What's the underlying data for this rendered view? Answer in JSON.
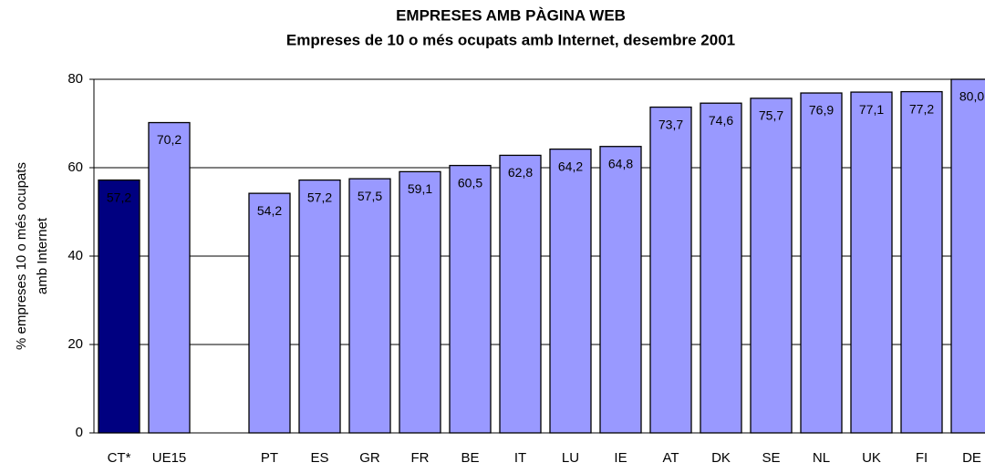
{
  "chart_data": {
    "type": "bar",
    "title": "EMPRESES AMB PÀGINA WEB",
    "subtitle": "Empreses de 10 o més ocupats amb Internet, desembre 2001",
    "y_label": [
      "% empreses 10 o més ocupats",
      "amb Internet"
    ],
    "categories": [
      "CT*",
      "UE15",
      null,
      "PT",
      "ES",
      "GR",
      "FR",
      "BE",
      "IT",
      "LU",
      "IE",
      "AT",
      "DK",
      "SE",
      "NL",
      "UK",
      "FI",
      "DE"
    ],
    "values": [
      57.2,
      70.2,
      null,
      54.2,
      57.2,
      57.5,
      59.1,
      60.5,
      62.8,
      64.2,
      64.8,
      73.7,
      74.6,
      75.7,
      76.9,
      77.1,
      77.2,
      80.0
    ],
    "value_labels": [
      "57,2",
      "70,2",
      null,
      "54,2",
      "57,2",
      "57,5",
      "59,1",
      "60,5",
      "62,8",
      "64,2",
      "64,8",
      "73,7",
      "74,6",
      "75,7",
      "76,9",
      "77,1",
      "77,2",
      "80,0"
    ],
    "colors": [
      "#000080",
      "#9999ff",
      null,
      "#9999ff",
      "#9999ff",
      "#9999ff",
      "#9999ff",
      "#9999ff",
      "#9999ff",
      "#9999ff",
      "#9999ff",
      "#9999ff",
      "#9999ff",
      "#9999ff",
      "#9999ff",
      "#9999ff",
      "#9999ff",
      "#9999ff"
    ],
    "ylim": [
      0,
      80
    ],
    "yticks": [
      0,
      20,
      40,
      60,
      80
    ],
    "grid": true
  }
}
